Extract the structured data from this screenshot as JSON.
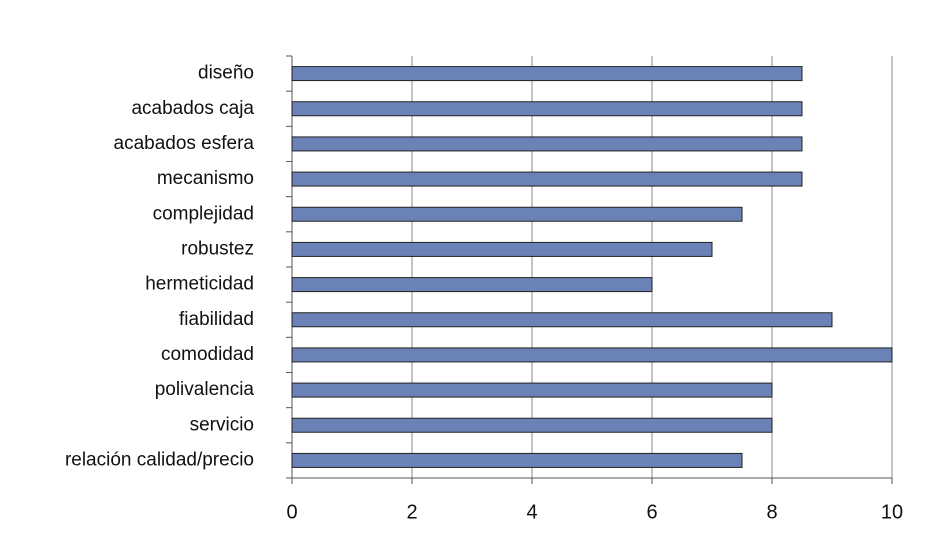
{
  "chart_data": {
    "type": "bar",
    "orientation": "horizontal",
    "categories": [
      "diseño",
      "acabados caja",
      "acabados esfera",
      "mecanismo",
      "complejidad",
      "robustez",
      "hermeticidad",
      "fiabilidad",
      "comodidad",
      "polivalencia",
      "servicio",
      "relación calidad/precio"
    ],
    "values": [
      8.5,
      8.5,
      8.5,
      8.5,
      7.5,
      7,
      6,
      9,
      10,
      8,
      8,
      7.5
    ],
    "color": "#6a82b6",
    "xlim": [
      0,
      10
    ],
    "xticks": [
      0,
      2,
      4,
      6,
      8,
      10
    ],
    "grid": true
  }
}
